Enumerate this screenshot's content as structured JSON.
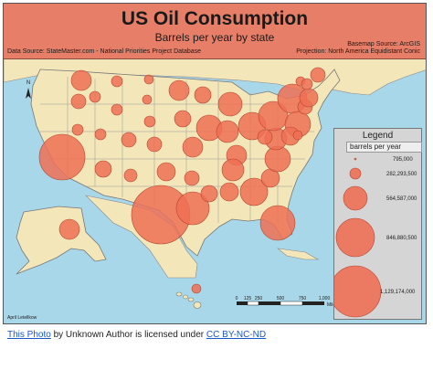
{
  "map": {
    "title": "US Oil Consumption",
    "subtitle": "Barrels per year by state",
    "source_left": "Data Source: StateMaster.com - National Priorities Project Database",
    "source_right_1": "Basemap Source: ArcGIS",
    "source_right_2": "Projection: North America Equidistant Conic",
    "north_label": "N",
    "author": "April Letellkow",
    "colors": {
      "water": "#a9d7ea",
      "land": "#f3e6b9",
      "bubble": "#ee7055",
      "banner": "#e77f68"
    }
  },
  "legend": {
    "title": "Legend",
    "subtitle": "barrels per year",
    "classes": [
      "795,000",
      "282,293,500",
      "564,587,000",
      "846,880,500",
      "1,129,174,000"
    ]
  },
  "scale_bar": {
    "ticks": [
      "0",
      "125",
      "250",
      "500",
      "750",
      "1,000"
    ],
    "unit": "Miles"
  },
  "attribution": {
    "photo_link": "This Photo",
    "middle": " by Unknown Author is licensed under ",
    "license_link": "CC BY-NC-ND"
  }
}
